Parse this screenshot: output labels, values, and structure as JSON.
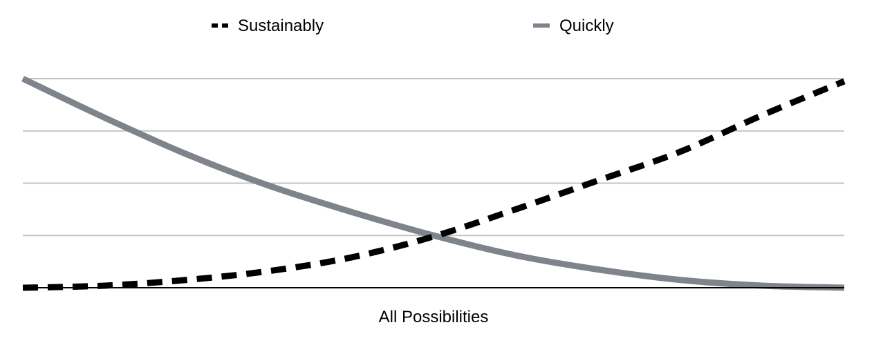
{
  "chart_data": {
    "type": "line",
    "title": "",
    "xlabel": "All Possibilities",
    "ylabel": "",
    "x": [
      0,
      1,
      2,
      3,
      4,
      5,
      6,
      7,
      8,
      9,
      10
    ],
    "xlim": [
      0,
      10
    ],
    "ylim": [
      0,
      4
    ],
    "y_gridlines": [
      1,
      2,
      3,
      4
    ],
    "grid": true,
    "show_tick_labels": false,
    "legend_position": "top",
    "series": [
      {
        "name": "Sustainably",
        "style": "dashed",
        "color": "#000000",
        "values": [
          0,
          0.04,
          0.15,
          0.32,
          0.58,
          0.98,
          1.5,
          2.05,
          2.6,
          3.3,
          3.95
        ]
      },
      {
        "name": "Quickly",
        "style": "solid",
        "color": "#7f838b",
        "values": [
          4.0,
          3.25,
          2.55,
          1.95,
          1.45,
          1.0,
          0.62,
          0.35,
          0.15,
          0.04,
          0.0
        ]
      }
    ],
    "colors": {
      "grid": "#c4c4c4",
      "axis": "#000000"
    }
  }
}
